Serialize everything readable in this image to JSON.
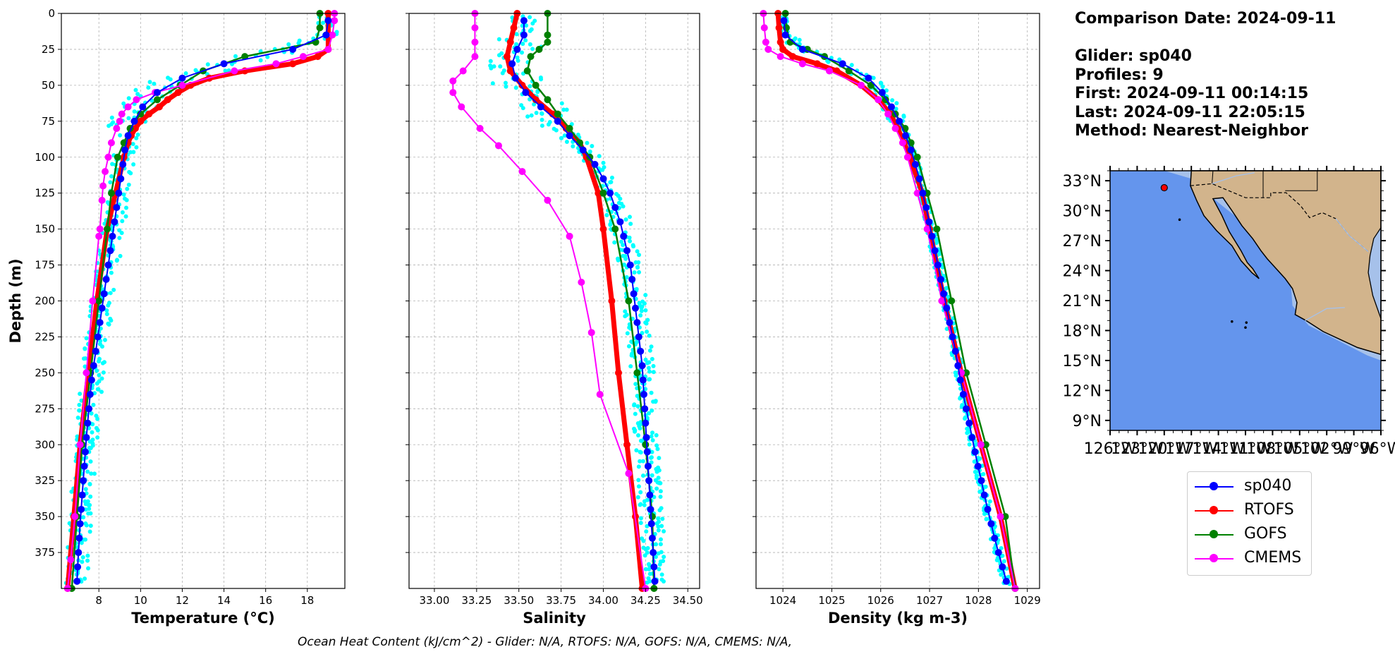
{
  "info": {
    "comparison": "Comparison Date: 2024-09-11",
    "glider": "Glider: sp040",
    "profiles": "Profiles: 9",
    "first": "First: 2024-09-11 00:14:15",
    "last": "Last: 2024-09-11 22:05:15",
    "method": "Method: Nearest-Neighbor"
  },
  "footer": "Ocean Heat Content (kJ/cm^2) - Glider: N/A,  RTOFS: N/A,  GOFS: N/A,  CMEMS: N/A,",
  "colors": {
    "sp040": "#0000ff",
    "RTOFS": "#ff0000",
    "GOFS": "#008000",
    "CMEMS": "#ff00ff",
    "profiles": "#00ffff",
    "ocean": "#6495ed",
    "shelf": "#a6c1ea",
    "land": "#d2b48c"
  },
  "legend": [
    {
      "name": "sp040",
      "color": "#0000ff"
    },
    {
      "name": "RTOFS",
      "color": "#ff0000"
    },
    {
      "name": "GOFS",
      "color": "#008000"
    },
    {
      "name": "CMEMS",
      "color": "#ff00ff"
    }
  ],
  "chart_data": [
    {
      "type": "line",
      "xlabel": "Temperature (°C)",
      "ylabel": "Depth (m)",
      "xlim": [
        6.2,
        19.8
      ],
      "ylim": [
        400,
        0
      ],
      "xticks": [
        8,
        10,
        12,
        14,
        16,
        18
      ],
      "yticks": [
        0,
        25,
        50,
        75,
        100,
        125,
        150,
        175,
        200,
        225,
        250,
        275,
        300,
        325,
        350,
        375
      ],
      "grid": true,
      "series": [
        {
          "name": "sp040",
          "depth": [
            5,
            15,
            25,
            35,
            45,
            55,
            65,
            75,
            85,
            95,
            105,
            115,
            125,
            135,
            145,
            155,
            165,
            175,
            185,
            195,
            205,
            215,
            225,
            235,
            245,
            255,
            265,
            275,
            285,
            295,
            305,
            315,
            325,
            335,
            345,
            355,
            365,
            375,
            385,
            395
          ],
          "values": [
            19.0,
            18.9,
            17.3,
            14.0,
            12.0,
            10.8,
            10.1,
            9.7,
            9.4,
            9.25,
            9.15,
            9.05,
            8.95,
            8.85,
            8.75,
            8.65,
            8.55,
            8.45,
            8.35,
            8.25,
            8.15,
            8.05,
            7.95,
            7.85,
            7.75,
            7.65,
            7.58,
            7.52,
            7.46,
            7.4,
            7.35,
            7.3,
            7.25,
            7.2,
            7.15,
            7.1,
            7.06,
            7.02,
            6.98,
            6.95
          ]
        },
        {
          "name": "RTOFS",
          "depth": [
            0,
            5,
            15,
            25,
            30,
            35,
            40,
            45,
            50,
            55,
            60,
            65,
            70,
            75,
            80,
            85,
            90,
            100,
            150,
            200,
            250,
            300,
            350,
            400
          ],
          "values": [
            19.0,
            19.0,
            19.0,
            19.0,
            18.5,
            17.3,
            15.0,
            13.3,
            12.4,
            11.8,
            11.3,
            10.9,
            10.4,
            10.0,
            9.75,
            9.55,
            9.4,
            9.2,
            8.4,
            7.9,
            7.5,
            7.1,
            6.8,
            6.5
          ]
        },
        {
          "name": "GOFS",
          "depth": [
            0,
            10,
            20,
            30,
            40,
            50,
            60,
            70,
            80,
            90,
            100,
            125,
            150,
            200,
            250,
            300,
            350,
            400
          ],
          "values": [
            18.6,
            18.6,
            18.4,
            15.0,
            13.0,
            11.9,
            10.8,
            10.0,
            9.5,
            9.2,
            8.9,
            8.6,
            8.4,
            8.0,
            7.6,
            7.2,
            6.95,
            6.7
          ]
        },
        {
          "name": "CMEMS",
          "depth": [
            0,
            5,
            15,
            25,
            30,
            35,
            40,
            50,
            55,
            60,
            65,
            70,
            75,
            80,
            90,
            100,
            110,
            120,
            130,
            150,
            155,
            200,
            250,
            300,
            350,
            380,
            400
          ],
          "values": [
            19.3,
            19.3,
            19.2,
            19.0,
            17.8,
            16.5,
            14.5,
            12.0,
            10.7,
            9.8,
            9.4,
            9.1,
            9.0,
            8.85,
            8.6,
            8.45,
            8.3,
            8.2,
            8.15,
            8.05,
            8.0,
            7.7,
            7.4,
            7.1,
            6.85,
            6.65,
            6.5
          ]
        }
      ]
    },
    {
      "type": "line",
      "xlabel": "Salinity",
      "xlim": [
        32.85,
        34.57
      ],
      "ylim": [
        400,
        0
      ],
      "xticks": [
        33.0,
        33.25,
        33.5,
        33.75,
        34.0,
        34.25,
        34.5
      ],
      "xticklabels": [
        "33.00",
        "33.25",
        "33.50",
        "33.75",
        "34.00",
        "34.25",
        "34.50"
      ],
      "yticks": [
        0,
        25,
        50,
        75,
        100,
        125,
        150,
        175,
        200,
        225,
        250,
        275,
        300,
        325,
        350,
        375
      ],
      "grid": true,
      "series": [
        {
          "name": "sp040",
          "depth": [
            5,
            15,
            25,
            35,
            45,
            55,
            65,
            75,
            85,
            95,
            105,
            115,
            125,
            135,
            145,
            155,
            165,
            175,
            185,
            195,
            205,
            215,
            225,
            235,
            245,
            255,
            265,
            275,
            285,
            295,
            305,
            315,
            325,
            335,
            345,
            355,
            365,
            375,
            385,
            395
          ],
          "values": [
            33.53,
            33.53,
            33.49,
            33.46,
            33.48,
            33.54,
            33.63,
            33.73,
            33.8,
            33.88,
            33.95,
            34.0,
            34.04,
            34.07,
            34.1,
            34.12,
            34.14,
            34.16,
            34.17,
            34.18,
            34.19,
            34.2,
            34.21,
            34.22,
            34.23,
            34.235,
            34.24,
            34.245,
            34.25,
            34.255,
            34.26,
            34.265,
            34.27,
            34.275,
            34.28,
            34.285,
            34.29,
            34.295,
            34.3,
            34.305
          ]
        },
        {
          "name": "RTOFS",
          "depth": [
            0,
            10,
            20,
            30,
            40,
            50,
            60,
            70,
            80,
            90,
            100,
            125,
            150,
            200,
            250,
            300,
            350,
            400
          ],
          "values": [
            33.49,
            33.47,
            33.45,
            33.43,
            33.45,
            33.52,
            33.6,
            33.7,
            33.78,
            33.86,
            33.9,
            33.97,
            34.0,
            34.05,
            34.09,
            34.14,
            34.19,
            34.23
          ]
        },
        {
          "name": "GOFS",
          "depth": [
            0,
            15,
            20,
            25,
            30,
            40,
            50,
            60,
            70,
            80,
            90,
            100,
            125,
            150,
            200,
            250,
            300,
            350,
            400
          ],
          "values": [
            33.67,
            33.67,
            33.67,
            33.62,
            33.57,
            33.55,
            33.6,
            33.67,
            33.73,
            33.8,
            33.86,
            33.92,
            34.0,
            34.07,
            34.15,
            34.2,
            34.25,
            34.29,
            34.3
          ]
        },
        {
          "name": "CMEMS",
          "depth": [
            0,
            10,
            20,
            30,
            40,
            47,
            55,
            65,
            80,
            92,
            110,
            130,
            155,
            187,
            222,
            265,
            320,
            400
          ],
          "values": [
            33.24,
            33.24,
            33.24,
            33.24,
            33.17,
            33.11,
            33.11,
            33.16,
            33.27,
            33.38,
            33.52,
            33.67,
            33.8,
            33.87,
            33.93,
            33.98,
            34.15,
            34.25
          ]
        }
      ]
    },
    {
      "type": "line",
      "xlabel": "Density (kg m-3)",
      "xlim": [
        1023.45,
        1029.25
      ],
      "ylim": [
        400,
        0
      ],
      "xticks": [
        1024,
        1025,
        1026,
        1027,
        1028,
        1029
      ],
      "yticks": [
        0,
        25,
        50,
        75,
        100,
        125,
        150,
        175,
        200,
        225,
        250,
        275,
        300,
        325,
        350,
        375
      ],
      "grid": true,
      "series": [
        {
          "name": "sp040",
          "depth": [
            5,
            15,
            25,
            35,
            45,
            55,
            65,
            75,
            85,
            95,
            105,
            115,
            125,
            135,
            145,
            155,
            165,
            175,
            185,
            195,
            205,
            215,
            225,
            235,
            245,
            255,
            265,
            275,
            285,
            295,
            305,
            315,
            325,
            335,
            345,
            355,
            365,
            375,
            385,
            395
          ],
          "values": [
            1024.02,
            1024.05,
            1024.4,
            1025.22,
            1025.75,
            1026.03,
            1026.22,
            1026.38,
            1026.51,
            1026.62,
            1026.71,
            1026.79,
            1026.86,
            1026.93,
            1026.99,
            1027.05,
            1027.11,
            1027.17,
            1027.23,
            1027.29,
            1027.35,
            1027.41,
            1027.47,
            1027.53,
            1027.58,
            1027.63,
            1027.69,
            1027.75,
            1027.81,
            1027.87,
            1027.93,
            1027.99,
            1028.06,
            1028.12,
            1028.19,
            1028.26,
            1028.33,
            1028.41,
            1028.49,
            1028.57
          ]
        },
        {
          "name": "RTOFS",
          "depth": [
            0,
            10,
            20,
            25,
            30,
            35,
            40,
            50,
            60,
            70,
            80,
            90,
            100,
            125,
            150,
            200,
            250,
            300,
            350,
            400
          ],
          "values": [
            1023.9,
            1023.92,
            1023.95,
            1024.0,
            1024.2,
            1024.7,
            1025.1,
            1025.6,
            1025.95,
            1026.2,
            1026.35,
            1026.48,
            1026.6,
            1026.85,
            1027.0,
            1027.3,
            1027.65,
            1028.05,
            1028.45,
            1028.75
          ]
        },
        {
          "name": "GOFS",
          "depth": [
            0,
            10,
            20,
            25,
            30,
            40,
            50,
            60,
            70,
            80,
            90,
            100,
            125,
            150,
            200,
            250,
            300,
            350,
            400
          ],
          "values": [
            1024.05,
            1024.07,
            1024.15,
            1024.5,
            1024.85,
            1025.35,
            1025.8,
            1026.1,
            1026.3,
            1026.5,
            1026.62,
            1026.75,
            1026.95,
            1027.15,
            1027.45,
            1027.75,
            1028.15,
            1028.55,
            1028.75
          ]
        },
        {
          "name": "CMEMS",
          "depth": [
            0,
            10,
            20,
            25,
            30,
            35,
            40,
            50,
            60,
            70,
            80,
            90,
            100,
            125,
            150,
            200,
            250,
            300,
            350,
            400
          ],
          "values": [
            1023.6,
            1023.62,
            1023.65,
            1023.7,
            1023.95,
            1024.4,
            1024.95,
            1025.6,
            1025.95,
            1026.15,
            1026.3,
            1026.45,
            1026.55,
            1026.75,
            1026.95,
            1027.25,
            1027.65,
            1028.05,
            1028.45,
            1028.75
          ]
        }
      ]
    },
    {
      "type": "map",
      "lat_ticks": [
        9,
        12,
        15,
        18,
        21,
        24,
        27,
        30,
        33
      ],
      "lat_tick_labels": [
        "9°N",
        "12°N",
        "15°N",
        "18°N",
        "21°N",
        "24°N",
        "27°N",
        "30°N",
        "33°N"
      ],
      "lon_tick_labels": [
        "126°W",
        "123°W",
        "120°W",
        "117°W",
        "114°W",
        "111°W",
        "108°W",
        "105°W",
        "102°W",
        "99°W",
        "96°W"
      ],
      "lonlim": [
        -126,
        -96
      ],
      "latlim": [
        8,
        34
      ],
      "glider_marker": {
        "lon": -120,
        "lat": 32.3
      }
    }
  ]
}
